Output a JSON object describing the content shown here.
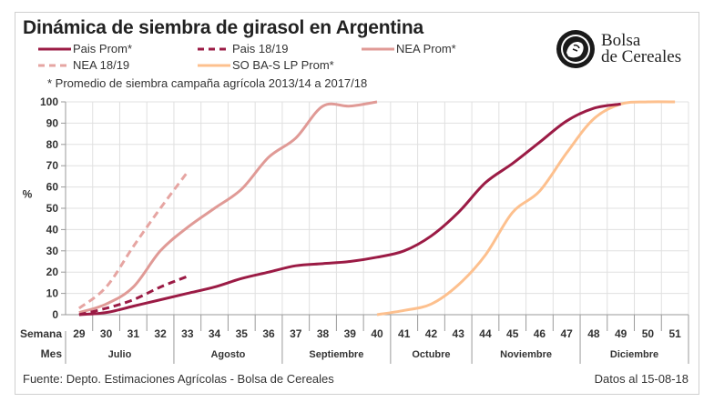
{
  "chart_data": {
    "type": "line",
    "title": "Dinámica de siembra de girasol en Argentina",
    "subtitle": "* Promedio de siembra campaña agrícola 2013/14 a 2017/18",
    "ylabel": "%",
    "xlabel_weeks": "Semana",
    "xlabel_months": "Mes",
    "ylim": [
      0,
      100
    ],
    "yticks": [
      0,
      10,
      20,
      30,
      40,
      50,
      60,
      70,
      80,
      90,
      100
    ],
    "x": [
      29,
      30,
      31,
      32,
      33,
      34,
      35,
      36,
      37,
      38,
      39,
      40,
      41,
      42,
      43,
      44,
      45,
      46,
      47,
      48,
      49,
      50,
      51
    ],
    "months": [
      {
        "label": "Julio",
        "from": 29,
        "to": 32
      },
      {
        "label": "Agosto",
        "from": 33,
        "to": 36
      },
      {
        "label": "Septiembre",
        "from": 37,
        "to": 40
      },
      {
        "label": "Octubre",
        "from": 41,
        "to": 43
      },
      {
        "label": "Noviembre",
        "from": 44,
        "to": 47
      },
      {
        "label": "Diciembre",
        "from": 48,
        "to": 51
      }
    ],
    "grid": true,
    "legend_position": "top",
    "series": [
      {
        "name": "Pais Prom*",
        "color": "#9b1b45",
        "dashed": false,
        "x": [
          29,
          30,
          31,
          32,
          33,
          34,
          35,
          36,
          37,
          38,
          39,
          40,
          41,
          42,
          43,
          44,
          45,
          46,
          47,
          48,
          49
        ],
        "values": [
          0,
          1,
          4,
          7,
          10,
          13,
          17,
          20,
          23,
          24,
          25,
          27,
          30,
          37,
          48,
          62,
          71,
          81,
          91,
          97,
          99
        ]
      },
      {
        "name": "Pais 18/19",
        "color": "#9b1b45",
        "dashed": true,
        "x": [
          29,
          30,
          31,
          32,
          33
        ],
        "values": [
          0,
          3,
          7,
          13,
          18
        ]
      },
      {
        "name": "NEA Prom*",
        "color": "#e09a96",
        "dashed": false,
        "x": [
          29,
          30,
          31,
          32,
          33,
          34,
          35,
          36,
          37,
          38,
          39,
          40
        ],
        "values": [
          1,
          5,
          13,
          30,
          41,
          50,
          59,
          74,
          83,
          98,
          98,
          100
        ]
      },
      {
        "name": "NEA 18/19",
        "color": "#e6a5a2",
        "dashed": true,
        "x": [
          29,
          30,
          31,
          32,
          33
        ],
        "values": [
          3,
          13,
          32,
          50,
          67
        ]
      },
      {
        "name": "SO BA-S LP Prom*",
        "color": "#fdc08e",
        "dashed": false,
        "x": [
          40,
          41,
          42,
          43,
          44,
          45,
          46,
          47,
          48,
          49,
          50,
          51
        ],
        "values": [
          0,
          2,
          5,
          14,
          28,
          48,
          58,
          76,
          92,
          99,
          100,
          100
        ]
      }
    ]
  },
  "logo": {
    "line1": "Bolsa",
    "line2": "de Cereales"
  },
  "footer": {
    "source": "Fuente: Depto. Estimaciones Agrícolas - Bolsa de Cereales",
    "date": "Datos al 15-08-18"
  }
}
